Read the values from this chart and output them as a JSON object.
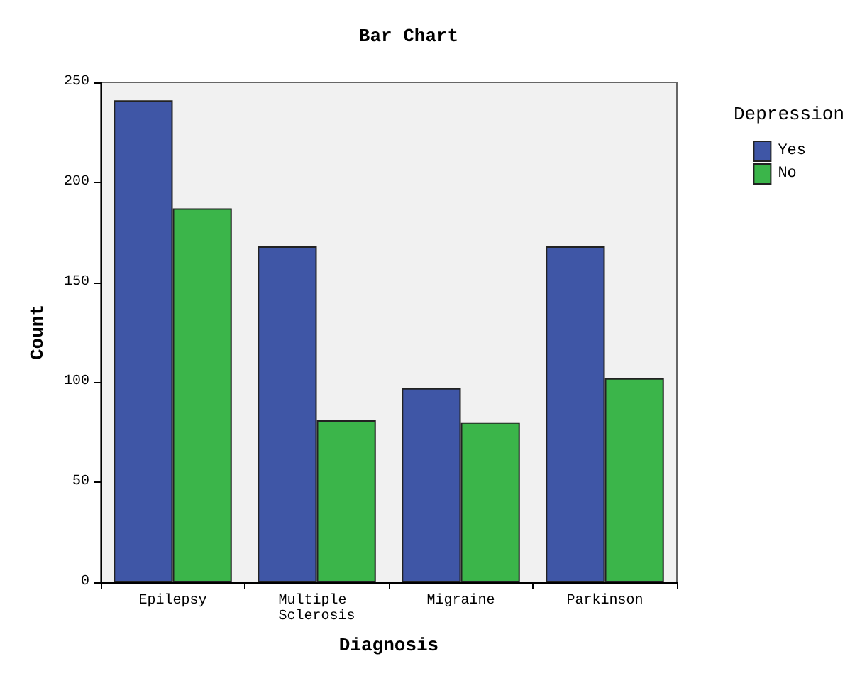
{
  "chart_data": {
    "type": "bar",
    "title": "Bar Chart",
    "xlabel": "Diagnosis",
    "ylabel": "Count",
    "legend_title": "Depression",
    "categories": [
      "Epilepsy",
      "Multiple Sclerosis",
      "Migraine",
      "Parkinson"
    ],
    "series": [
      {
        "name": "Yes",
        "color": "#3f56a6",
        "values": [
          241,
          168,
          97,
          168
        ]
      },
      {
        "name": "No",
        "color": "#3bb54a",
        "values": [
          187,
          81,
          80,
          102
        ]
      }
    ],
    "ylim": [
      0,
      250
    ],
    "yticks": [
      0,
      50,
      100,
      150,
      200,
      250
    ],
    "grid": false,
    "legend": "top right"
  }
}
